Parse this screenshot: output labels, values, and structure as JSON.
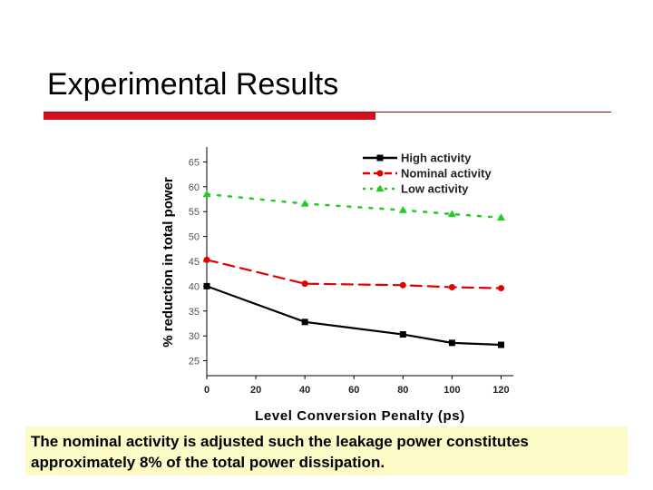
{
  "slide": {
    "title": "Experimental Results",
    "caption": "The nominal activity is adjusted such the leakage power constitutes approximately 8% of the total power dissipation.",
    "colors": {
      "title_rule": "#d0101e",
      "caption_bg": "#fdfbc7"
    }
  },
  "chart_data": {
    "type": "line",
    "title": "",
    "xlabel": "Level Conversion Penalty (ps)",
    "ylabel": "% reduction in total power",
    "x": [
      0,
      40,
      80,
      100,
      120
    ],
    "xlim": [
      0,
      125
    ],
    "ylim": [
      22,
      68
    ],
    "xticks": [
      0,
      20,
      40,
      60,
      80,
      100,
      120
    ],
    "yticks": [
      25,
      30,
      35,
      40,
      45,
      50,
      55,
      60,
      65
    ],
    "legend_position": "top-right",
    "series": [
      {
        "name": "High activity",
        "values": [
          40,
          32.8,
          30.3,
          28.6,
          28.2
        ],
        "color": "#000000",
        "dash": "solid",
        "marker": "square"
      },
      {
        "name": "Nominal activity",
        "values": [
          45.3,
          40.5,
          40.2,
          39.8,
          39.6
        ],
        "color": "#e00000",
        "dash": "dashed",
        "marker": "circle"
      },
      {
        "name": "Low activity",
        "values": [
          58.5,
          56.6,
          55.3,
          54.5,
          53.8
        ],
        "color": "#22cc22",
        "dash": "dotted",
        "marker": "triangle"
      }
    ]
  }
}
